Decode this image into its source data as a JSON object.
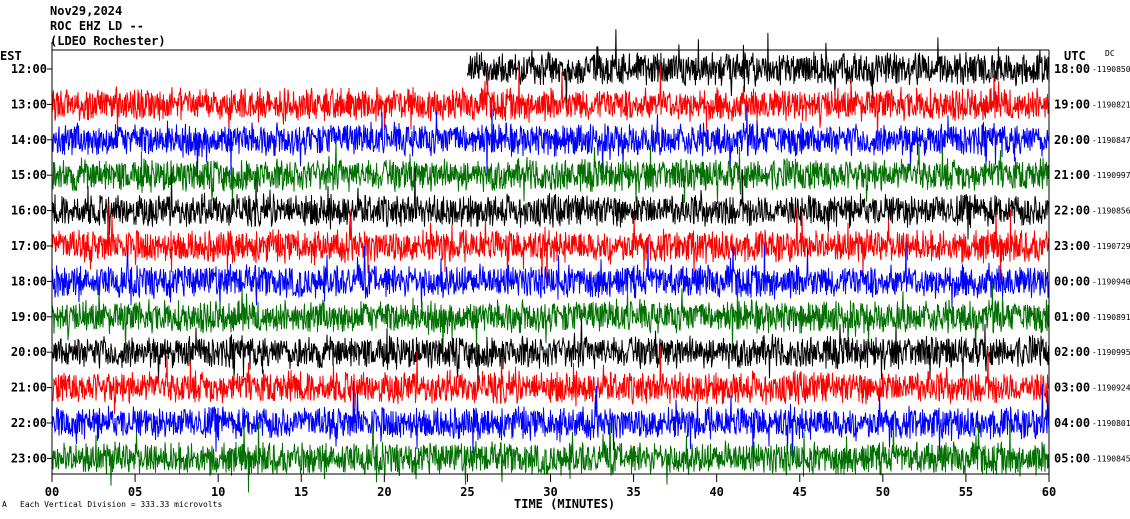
{
  "header": {
    "date": "Nov29,2024",
    "station": "ROC EHZ LD --",
    "location": "(LDEO Rochester)"
  },
  "footer": {
    "mark": "A",
    "division_text": "Each Vertical Division = 333.33 microvolts"
  },
  "chart_data": {
    "type": "line",
    "title": "",
    "xlabel": "TIME (MINUTES)",
    "x_ticks": [
      "00",
      "05",
      "10",
      "15",
      "20",
      "25",
      "30",
      "35",
      "40",
      "45",
      "50",
      "55",
      "60"
    ],
    "xlim": [
      0,
      60
    ],
    "left_axis_label": "EST",
    "right_axis_label": "UTC",
    "right_column_label": "DC",
    "left_ticks": [
      "12:00",
      "13:00",
      "14:00",
      "15:00",
      "16:00",
      "17:00",
      "18:00",
      "19:00",
      "20:00",
      "21:00",
      "22:00",
      "23:00"
    ],
    "right_ticks": [
      "18:00",
      "19:00",
      "20:00",
      "21:00",
      "22:00",
      "23:00",
      "00:00",
      "01:00",
      "02:00",
      "03:00",
      "04:00",
      "05:00"
    ],
    "dc_values": [
      "-1190850",
      "-1190821",
      "-1190847",
      "-1190997",
      "-1190856",
      "-1190729",
      "-1190940",
      "-1190891",
      "-1190995",
      "-1190924",
      "-1190801",
      "-1190845"
    ],
    "trace_colors": [
      "#000000",
      "#ff0000",
      "#0000ff",
      "#007000"
    ],
    "first_row_data_starts_at_minute": 25,
    "vertical_division_microvolts": 333.33
  }
}
